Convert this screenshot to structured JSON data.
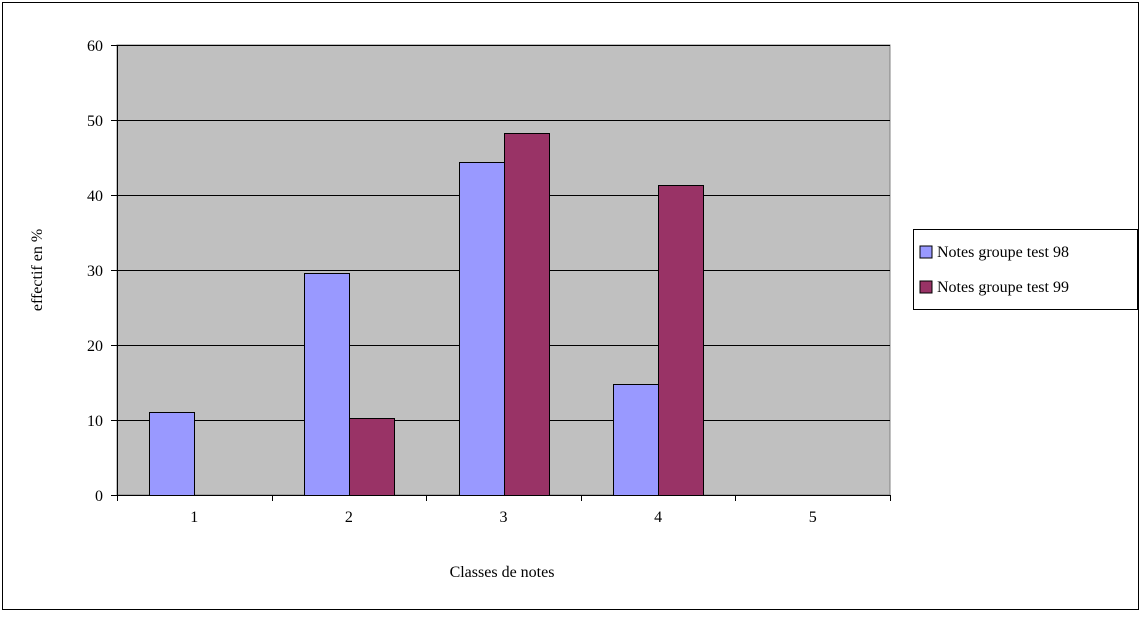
{
  "chart_data": {
    "type": "bar",
    "title": "",
    "xlabel": "Classes de notes",
    "ylabel": "effectif en %",
    "categories": [
      "1",
      "2",
      "3",
      "4",
      "5"
    ],
    "ylim": [
      0,
      60
    ],
    "yticks": [
      0,
      10,
      20,
      30,
      40,
      50,
      60
    ],
    "grid": true,
    "legend_position": "right",
    "series": [
      {
        "name": "Notes groupe test 98",
        "color": "#9999ff",
        "values": [
          11.1,
          29.6,
          44.4,
          14.8,
          0
        ]
      },
      {
        "name": "Notes groupe test 99",
        "color": "#993366",
        "values": [
          0,
          10.3,
          48.3,
          41.4,
          0
        ]
      }
    ],
    "plot_background": "#c0c0c0"
  }
}
